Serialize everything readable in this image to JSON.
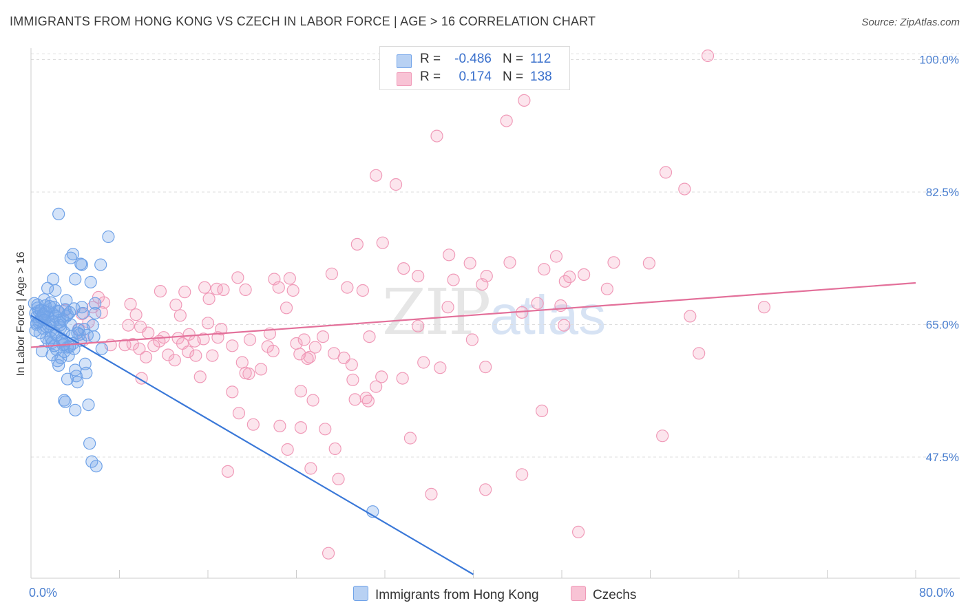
{
  "title": "IMMIGRANTS FROM HONG KONG VS CZECH IN LABOR FORCE | AGE > 16 CORRELATION CHART",
  "source": "Source: ZipAtlas.com",
  "watermark": {
    "zip": "ZIP",
    "atlas": "atlas"
  },
  "legend": {
    "r_label": "R =",
    "n_label": "N =",
    "rows": [
      {
        "r": "-0.486",
        "n": "112",
        "color": "#6fa2e8"
      },
      {
        "r": "0.174",
        "n": "138",
        "color": "#f09ab8"
      }
    ]
  },
  "bottom_legend": [
    {
      "label": "Immigrants from Hong Kong",
      "color": "#b8d1f3"
    },
    {
      "label": "Czechs",
      "color": "#f8c3d5"
    }
  ],
  "chart_data": {
    "type": "scatter",
    "title": "IMMIGRANTS FROM HONG KONG VS CZECH IN LABOR FORCE | AGE > 16 CORRELATION CHART",
    "xlabel": "",
    "ylabel": "In Labor Force | Age > 16",
    "xlim": [
      0,
      80
    ],
    "ylim": [
      31.5,
      101.5
    ],
    "x_tick_labels": [
      "0.0%",
      "80.0%"
    ],
    "y_ticks": [
      47.5,
      65.0,
      82.5,
      100.0
    ],
    "y_tick_labels": [
      "47.5%",
      "65.0%",
      "82.5%",
      "100.0%"
    ],
    "grid": true,
    "series": [
      {
        "name": "Immigrants from Hong Kong",
        "color": "#6fa2e8",
        "line_color": "#3a78d8",
        "trend": {
          "x": [
            0,
            40
          ],
          "y": [
            66.2,
            32.0
          ]
        },
        "points": [
          [
            0.3,
            67.8
          ],
          [
            0.4,
            66.5
          ],
          [
            0.5,
            66.0
          ],
          [
            0.5,
            65.2
          ],
          [
            0.6,
            67.2
          ],
          [
            0.7,
            66.8
          ],
          [
            0.8,
            65.5
          ],
          [
            0.9,
            66.9
          ],
          [
            1.0,
            65.8
          ],
          [
            1.1,
            64.5
          ],
          [
            1.2,
            66.2
          ],
          [
            1.3,
            67.5
          ],
          [
            1.4,
            63.2
          ],
          [
            1.0,
            61.5
          ],
          [
            1.2,
            68.3
          ],
          [
            1.5,
            69.8
          ],
          [
            1.6,
            66.7
          ],
          [
            1.7,
            65.1
          ],
          [
            1.8,
            64.2
          ],
          [
            1.9,
            62.6
          ],
          [
            2.0,
            66.4
          ],
          [
            2.1,
            67.3
          ],
          [
            2.2,
            63.8
          ],
          [
            2.3,
            61.7
          ],
          [
            2.4,
            60.2
          ],
          [
            2.5,
            59.6
          ],
          [
            2.6,
            65.3
          ],
          [
            2.7,
            64.6
          ],
          [
            2.8,
            63.1
          ],
          [
            2.9,
            62.3
          ],
          [
            3.0,
            61.4
          ],
          [
            3.1,
            67.0
          ],
          [
            3.2,
            66.1
          ],
          [
            3.3,
            62.0
          ],
          [
            3.4,
            60.9
          ],
          [
            2.0,
            71.0
          ],
          [
            2.2,
            69.5
          ],
          [
            2.4,
            66.8
          ],
          [
            2.6,
            65.6
          ],
          [
            2.8,
            62.8
          ],
          [
            3.0,
            64.0
          ],
          [
            3.2,
            68.2
          ],
          [
            3.5,
            66.6
          ],
          [
            3.6,
            65.0
          ],
          [
            3.7,
            63.5
          ],
          [
            3.8,
            62.5
          ],
          [
            3.9,
            61.8
          ],
          [
            4.0,
            59.0
          ],
          [
            4.1,
            58.2
          ],
          [
            4.2,
            57.4
          ],
          [
            4.3,
            64.3
          ],
          [
            4.4,
            63.7
          ],
          [
            4.5,
            62.9
          ],
          [
            4.6,
            67.3
          ],
          [
            4.7,
            66.5
          ],
          [
            4.8,
            64.4
          ],
          [
            4.9,
            59.8
          ],
          [
            5.0,
            58.6
          ],
          [
            5.1,
            63.6
          ],
          [
            5.2,
            54.4
          ],
          [
            5.3,
            49.3
          ],
          [
            5.5,
            46.9
          ],
          [
            5.6,
            64.9
          ],
          [
            5.7,
            63.4
          ],
          [
            5.8,
            66.5
          ],
          [
            3.8,
            74.3
          ],
          [
            3.6,
            73.8
          ],
          [
            4.0,
            71.0
          ],
          [
            4.6,
            72.9
          ],
          [
            4.5,
            73.0
          ],
          [
            5.4,
            70.6
          ],
          [
            5.8,
            67.8
          ],
          [
            5.9,
            46.3
          ],
          [
            6.3,
            72.9
          ],
          [
            6.4,
            61.8
          ],
          [
            7.0,
            76.6
          ],
          [
            3.0,
            55.0
          ],
          [
            3.3,
            57.8
          ],
          [
            3.1,
            54.8
          ],
          [
            4.0,
            53.7
          ],
          [
            2.5,
            79.6
          ],
          [
            0.5,
            65.0
          ],
          [
            1.5,
            66.0
          ],
          [
            1.8,
            67.9
          ],
          [
            2.2,
            66.1
          ],
          [
            2.6,
            64.9
          ],
          [
            0.8,
            63.9
          ],
          [
            1.6,
            64.8
          ],
          [
            2.9,
            65.7
          ],
          [
            3.3,
            66.3
          ],
          [
            1.3,
            66.7
          ],
          [
            0.9,
            65.9
          ],
          [
            1.1,
            66.4
          ],
          [
            2.0,
            65.4
          ],
          [
            1.4,
            64.7
          ],
          [
            0.7,
            65.3
          ],
          [
            2.3,
            63.6
          ],
          [
            3.5,
            62.1
          ],
          [
            1.9,
            61.0
          ],
          [
            2.7,
            60.6
          ],
          [
            1.6,
            62.7
          ],
          [
            0.6,
            67.6
          ],
          [
            3.9,
            67.1
          ],
          [
            4.2,
            63.9
          ],
          [
            1.7,
            67.4
          ],
          [
            1.2,
            65.6
          ],
          [
            0.4,
            64.2
          ],
          [
            2.5,
            66.7
          ],
          [
            30.9,
            40.3
          ],
          [
            3.0,
            62.4
          ],
          [
            2.1,
            62.2
          ],
          [
            1.8,
            63.2
          ]
        ]
      },
      {
        "name": "Czechs",
        "color": "#f09ab8",
        "line_color": "#e3709a",
        "trend": {
          "x": [
            0,
            80
          ],
          "y": [
            62.0,
            70.5
          ]
        },
        "points": [
          [
            61.2,
            100.5
          ],
          [
            44.6,
            94.6
          ],
          [
            43.0,
            91.9
          ],
          [
            36.7,
            89.9
          ],
          [
            57.4,
            85.1
          ],
          [
            31.2,
            84.7
          ],
          [
            33.0,
            83.5
          ],
          [
            59.1,
            82.9
          ],
          [
            29.5,
            75.6
          ],
          [
            31.8,
            75.8
          ],
          [
            37.8,
            74.2
          ],
          [
            47.5,
            74.0
          ],
          [
            43.3,
            73.2
          ],
          [
            39.7,
            73.1
          ],
          [
            55.9,
            73.1
          ],
          [
            46.4,
            72.3
          ],
          [
            33.7,
            72.4
          ],
          [
            35.0,
            71.4
          ],
          [
            27.2,
            71.7
          ],
          [
            28.6,
            69.9
          ],
          [
            30.0,
            69.5
          ],
          [
            40.8,
            70.3
          ],
          [
            48.3,
            70.7
          ],
          [
            38.2,
            70.9
          ],
          [
            52.7,
            73.2
          ],
          [
            18.7,
            71.2
          ],
          [
            22.0,
            71.0
          ],
          [
            23.4,
            71.1
          ],
          [
            15.7,
            69.9
          ],
          [
            16.8,
            69.7
          ],
          [
            17.4,
            69.6
          ],
          [
            19.4,
            69.6
          ],
          [
            22.4,
            69.9
          ],
          [
            23.7,
            69.5
          ],
          [
            11.7,
            69.4
          ],
          [
            13.9,
            69.3
          ],
          [
            16.1,
            68.4
          ],
          [
            13.1,
            67.6
          ],
          [
            9.0,
            67.7
          ],
          [
            6.6,
            67.9
          ],
          [
            6.1,
            68.6
          ],
          [
            6.4,
            66.6
          ],
          [
            37.7,
            67.3
          ],
          [
            45.8,
            67.8
          ],
          [
            47.9,
            67.5
          ],
          [
            66.3,
            67.3
          ],
          [
            44.4,
            66.6
          ],
          [
            13.5,
            66.2
          ],
          [
            16.0,
            65.2
          ],
          [
            17.2,
            64.4
          ],
          [
            23.1,
            67.2
          ],
          [
            35.0,
            64.8
          ],
          [
            48.2,
            64.9
          ],
          [
            59.6,
            66.1
          ],
          [
            4.6,
            66.4
          ],
          [
            5.2,
            65.3
          ],
          [
            4.3,
            64.4
          ],
          [
            8.8,
            64.9
          ],
          [
            9.9,
            64.7
          ],
          [
            10.6,
            63.9
          ],
          [
            12.0,
            63.3
          ],
          [
            13.3,
            63.2
          ],
          [
            14.3,
            63.7
          ],
          [
            15.6,
            63.1
          ],
          [
            14.8,
            62.8
          ],
          [
            16.9,
            63.3
          ],
          [
            19.8,
            63.0
          ],
          [
            21.6,
            63.8
          ],
          [
            24.0,
            62.5
          ],
          [
            24.7,
            63.0
          ],
          [
            26.4,
            63.4
          ],
          [
            21.4,
            62.1
          ],
          [
            18.2,
            62.2
          ],
          [
            11.6,
            62.8
          ],
          [
            8.5,
            62.3
          ],
          [
            9.2,
            62.4
          ],
          [
            7.2,
            62.3
          ],
          [
            9.8,
            61.8
          ],
          [
            12.4,
            61.0
          ],
          [
            10.4,
            60.7
          ],
          [
            14.2,
            61.4
          ],
          [
            14.9,
            60.9
          ],
          [
            13.0,
            60.3
          ],
          [
            16.4,
            60.9
          ],
          [
            19.1,
            60.0
          ],
          [
            21.9,
            61.5
          ],
          [
            24.3,
            61.1
          ],
          [
            25.2,
            60.7
          ],
          [
            28.3,
            60.6
          ],
          [
            29.0,
            59.7
          ],
          [
            31.7,
            58.1
          ],
          [
            33.6,
            57.9
          ],
          [
            35.5,
            60.0
          ],
          [
            30.6,
            63.4
          ],
          [
            25.7,
            62.0
          ],
          [
            25.0,
            60.5
          ],
          [
            20.8,
            59.1
          ],
          [
            19.7,
            58.5
          ],
          [
            15.3,
            58.1
          ],
          [
            19.4,
            58.6
          ],
          [
            18.2,
            56.1
          ],
          [
            24.4,
            56.2
          ],
          [
            31.2,
            56.8
          ],
          [
            30.5,
            54.9
          ],
          [
            29.1,
            57.7
          ],
          [
            30.3,
            55.3
          ],
          [
            29.3,
            55.1
          ],
          [
            25.5,
            55.0
          ],
          [
            18.8,
            53.3
          ],
          [
            22.5,
            51.6
          ],
          [
            20.1,
            51.8
          ],
          [
            26.6,
            51.2
          ],
          [
            24.4,
            51.4
          ],
          [
            34.3,
            50.0
          ],
          [
            27.5,
            48.6
          ],
          [
            46.2,
            53.6
          ],
          [
            57.1,
            50.3
          ],
          [
            23.2,
            48.5
          ],
          [
            17.8,
            45.6
          ],
          [
            25.3,
            46.0
          ],
          [
            27.8,
            44.6
          ],
          [
            36.2,
            42.6
          ],
          [
            41.1,
            43.2
          ],
          [
            44.4,
            45.2
          ],
          [
            49.5,
            37.6
          ],
          [
            26.9,
            34.8
          ],
          [
            10.0,
            57.9
          ],
          [
            50.0,
            71.6
          ],
          [
            41.2,
            71.4
          ],
          [
            48.7,
            71.3
          ],
          [
            37.0,
            59.3
          ],
          [
            41.1,
            59.4
          ],
          [
            60.4,
            61.2
          ],
          [
            39.9,
            63.0
          ],
          [
            52.1,
            69.7
          ],
          [
            27.4,
            61.2
          ],
          [
            11.1,
            62.2
          ],
          [
            13.7,
            62.5
          ],
          [
            4.8,
            63.0
          ],
          [
            3.1,
            66.9
          ],
          [
            5.6,
            67.3
          ],
          [
            9.5,
            66.3
          ]
        ]
      }
    ]
  }
}
